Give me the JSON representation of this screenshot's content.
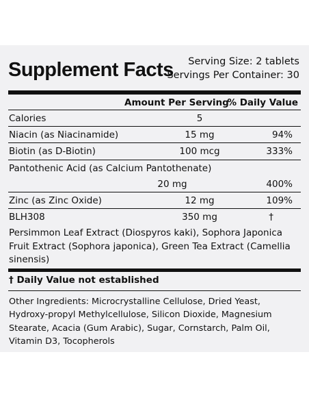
{
  "header": {
    "title": "Supplement Facts",
    "serving_size": "Serving Size: 2 tablets",
    "servings_per_container": "Servings Per Container: 30"
  },
  "columns": {
    "amount": "Amount Per Serving",
    "daily_value": "% Daily Value"
  },
  "rows": [
    {
      "name": "Calories",
      "amount": "5",
      "pct": ""
    },
    {
      "name": "Niacin (as Niacinamide)",
      "amount": "15 mg",
      "pct": "94%"
    },
    {
      "name": "Biotin (as D-Biotin)",
      "amount": "100 mcg",
      "pct": "333%"
    },
    {
      "name": "Pantothenic Acid (as Calcium Pantothenate)",
      "amount": "20 mg",
      "pct": "400%"
    },
    {
      "name": "Zinc (as Zinc Oxide)",
      "amount": "12 mg",
      "pct": "109%"
    },
    {
      "name": "BLH308",
      "amount": "350 mg",
      "pct": "†"
    }
  ],
  "blend_ingredients": "Persimmon Leaf Extract (Diospyros kaki), Sophora Japonica Fruit Extract (Sophora japonica), Green Tea Extract (Camellia sinensis)",
  "footnote": "† Daily Value not established",
  "other_ingredients": "Other Ingredients: Microcrystalline Cellulose, Dried Yeast, Hydroxy-propyl Methylcellulose, Silicon Dioxide, Magnesium Stearate, Acacia (Gum Arabic), Sugar, Cornstarch, Palm Oil, Vitamin D3, Tocopherols"
}
